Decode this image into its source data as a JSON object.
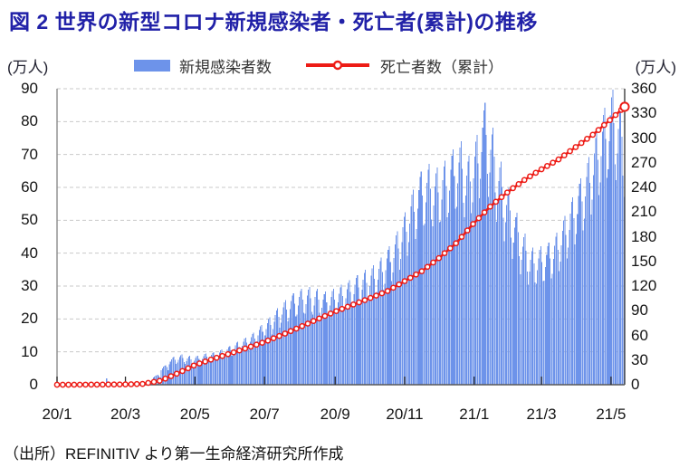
{
  "title": "図 2  世界の新型コロナ新規感染者・死亡者(累計)の推移",
  "unit_left": "(万人)",
  "unit_right": "(万人)",
  "legend": {
    "bars_label": "新規感染者数",
    "line_label": "死亡者数（累計）"
  },
  "source_note": "（出所）REFINITIV より第一生命経済研究所作成",
  "colors": {
    "bar": "#6d93ea",
    "line": "#ed1c16",
    "marker_fill": "#ffffff",
    "title": "#2121a8",
    "grid": "#c9c9c9",
    "axis_left_line": "#8c8c8c",
    "axis_bottom_line": "#595959",
    "axis_right_line": "#3d3d3d",
    "tick_mark": "#2b2b2b"
  },
  "chart_data": {
    "type": "bar+line combo, daily series 2020/1/1 - 2021/5/13",
    "x_axis": {
      "tick_labels": [
        "20/1",
        "20/3",
        "20/5",
        "20/7",
        "20/9",
        "20/11",
        "21/1",
        "21/3",
        "21/5"
      ],
      "tick_day_indices": [
        0,
        60,
        121,
        182,
        244,
        305,
        366,
        425,
        486
      ],
      "days_total": 498
    },
    "left_axis": {
      "min": 0,
      "max": 90,
      "step": 10,
      "tick_values": [
        0,
        10,
        20,
        30,
        40,
        50,
        60,
        70,
        80,
        90
      ],
      "unit": "万人",
      "applies_to": "新規感染者数"
    },
    "right_axis": {
      "min": 0,
      "max": 360,
      "step": 30,
      "tick_values": [
        0,
        30,
        60,
        90,
        120,
        150,
        180,
        210,
        240,
        270,
        300,
        330,
        360
      ],
      "unit": "万人",
      "applies_to": "死亡者数（累計）"
    },
    "grid": "horizontal dashed at each left-axis step",
    "legend_position": "top-center",
    "series": [
      {
        "name": "新規感染者数",
        "kind": "bar",
        "axis": "left",
        "note": "daily bars = weekly average value × weekday pattern; weeks start 2020-01-01",
        "week_step_days": 7,
        "weekly_avg_values": [
          0.05,
          0.08,
          0.15,
          0.25,
          0.32,
          0.38,
          0.45,
          0.35,
          0.12,
          0.15,
          0.35,
          0.9,
          2.6,
          5.2,
          7.4,
          8.0,
          7.6,
          7.7,
          8.3,
          8.6,
          9.3,
          10.2,
          11.4,
          12.5,
          13.8,
          15.8,
          17.8,
          20.2,
          22.4,
          24.2,
          25.4,
          25.8,
          25.4,
          24.6,
          25.4,
          26.4,
          27.6,
          29.0,
          30.4,
          31.6,
          33.6,
          36.6,
          40.6,
          45.6,
          51.6,
          56.4,
          58.4,
          57.4,
          59.2,
          62.2,
          64.4,
          60.6,
          66.0,
          74.5,
          68.0,
          59.0,
          52.0,
          45.5,
          40.0,
          36.2,
          36.6,
          37.6,
          40.2,
          44.6,
          49.6,
          54.6,
          60.2,
          67.0,
          73.2,
          78.0,
          74.0,
          68.0
        ],
        "weekday_pattern": [
          0.84,
          0.95,
          1.05,
          1.12,
          1.15,
          1.02,
          0.86
        ],
        "daily_overrides": {
          "43": 1.9
        },
        "peaks": {
          "2021-01 peak": 86,
          "2021-04 peak": 90,
          "2020-11 peak": 67,
          "2021-02 trough": 30
        }
      },
      {
        "name": "死亡者数（累計）",
        "kind": "line",
        "axis": "right",
        "marker": "small circle, white center, red ring; larger white end marker",
        "marker_every_days": 5,
        "anchor_points_day_value": [
          [
            0,
            0
          ],
          [
            31,
            0.1
          ],
          [
            60,
            0.4
          ],
          [
            75,
            1
          ],
          [
            91,
            5
          ],
          [
            106,
            14
          ],
          [
            121,
            24
          ],
          [
            136,
            31
          ],
          [
            152,
            38
          ],
          [
            167,
            45
          ],
          [
            182,
            52
          ],
          [
            198,
            61
          ],
          [
            213,
            70
          ],
          [
            229,
            80
          ],
          [
            244,
            89
          ],
          [
            259,
            97
          ],
          [
            274,
            105
          ],
          [
            290,
            114
          ],
          [
            305,
            126
          ],
          [
            320,
            138
          ],
          [
            335,
            154
          ],
          [
            350,
            172
          ],
          [
            366,
            197
          ],
          [
            381,
            218
          ],
          [
            397,
            236
          ],
          [
            411,
            250
          ],
          [
            425,
            262
          ],
          [
            440,
            274
          ],
          [
            456,
            290
          ],
          [
            471,
            305
          ],
          [
            486,
            323
          ],
          [
            498,
            338
          ]
        ]
      }
    ]
  }
}
